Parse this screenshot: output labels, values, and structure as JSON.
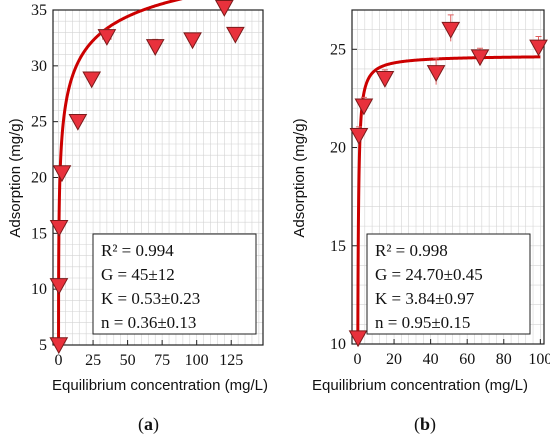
{
  "chart_data": [
    {
      "type": "scatter",
      "panel_label": "a",
      "xlabel": "Equilibrium concentration (mg/L)",
      "ylabel": "Adsorption (mg/g)",
      "xlim": [
        -4,
        148
      ],
      "ylim": [
        5,
        35
      ],
      "xticks": [
        0,
        25,
        50,
        75,
        100,
        125
      ],
      "yticks": [
        5,
        10,
        15,
        20,
        25,
        30,
        35
      ],
      "grid": true,
      "points": [
        {
          "x": 0.2,
          "y": 5.0,
          "xerr": 0.5,
          "yerr": 0.2
        },
        {
          "x": 0.3,
          "y": 10.3,
          "xerr": 0.5,
          "yerr": 0.3
        },
        {
          "x": 0.4,
          "y": 15.5,
          "xerr": 0.5,
          "yerr": 0.3
        },
        {
          "x": 2.5,
          "y": 20.4,
          "xerr": 0.8,
          "yerr": 0.3
        },
        {
          "x": 14,
          "y": 25.0,
          "xerr": 1.0,
          "yerr": 0.3
        },
        {
          "x": 24,
          "y": 28.8,
          "xerr": 1.0,
          "yerr": 0.3
        },
        {
          "x": 35,
          "y": 32.6,
          "xerr": 3.0,
          "yerr": 0.4
        },
        {
          "x": 70,
          "y": 31.7,
          "xerr": 1.5,
          "yerr": 0.4
        },
        {
          "x": 97,
          "y": 32.3,
          "xerr": 1.5,
          "yerr": 0.3
        },
        {
          "x": 120,
          "y": 35.2,
          "xerr": 1.5,
          "yerr": 0.3
        },
        {
          "x": 128,
          "y": 32.8,
          "xerr": 1.5,
          "yerr": 0.3
        }
      ],
      "fit": {
        "G": 45,
        "K": 0.53,
        "n": 0.36,
        "xmax": 130
      },
      "stats": {
        "r2": "R² = 0.994",
        "G": "G = 45±12",
        "K": "K = 0.53±0.23",
        "n": "n = 0.36±0.13"
      }
    },
    {
      "type": "scatter",
      "panel_label": "b",
      "xlabel": "Equilibrium concentration (mg/L)",
      "ylabel": "Adsorption (mg/g)",
      "xlim": [
        -3,
        102
      ],
      "ylim": [
        10,
        27
      ],
      "xticks": [
        0,
        20,
        40,
        60,
        80,
        100
      ],
      "yticks": [
        10,
        15,
        20,
        25
      ],
      "grid": true,
      "points": [
        {
          "x": 0.3,
          "y": 10.3,
          "xerr": 0.5,
          "yerr": 0.2
        },
        {
          "x": 0.8,
          "y": 20.6,
          "xerr": 0.5,
          "yerr": 0.3
        },
        {
          "x": 3.5,
          "y": 22.1,
          "xerr": 0.8,
          "yerr": 0.3
        },
        {
          "x": 15,
          "y": 23.5,
          "xerr": 1.0,
          "yerr": 0.3
        },
        {
          "x": 43,
          "y": 23.8,
          "xerr": 1.0,
          "yerr": 0.6
        },
        {
          "x": 51,
          "y": 26.0,
          "xerr": 1.0,
          "yerr": 0.6
        },
        {
          "x": 67,
          "y": 24.6,
          "xerr": 1.5,
          "yerr": 0.3
        },
        {
          "x": 99,
          "y": 25.1,
          "xerr": 1.0,
          "yerr": 0.4
        }
      ],
      "fit": {
        "G": 24.7,
        "K": 3.84,
        "n": 0.95,
        "xmax": 100
      },
      "stats": {
        "r2": "R² = 0.998",
        "G": "G = 24.70±0.45",
        "K": "K = 3.84±0.97",
        "n": "n = 0.95±0.15"
      }
    }
  ],
  "colors": {
    "marker": "#e8313c",
    "marker_edge": "#7a1a1a",
    "fit": "#cc0000",
    "grid": "#d4d4d4",
    "errbar": "#e06060"
  }
}
